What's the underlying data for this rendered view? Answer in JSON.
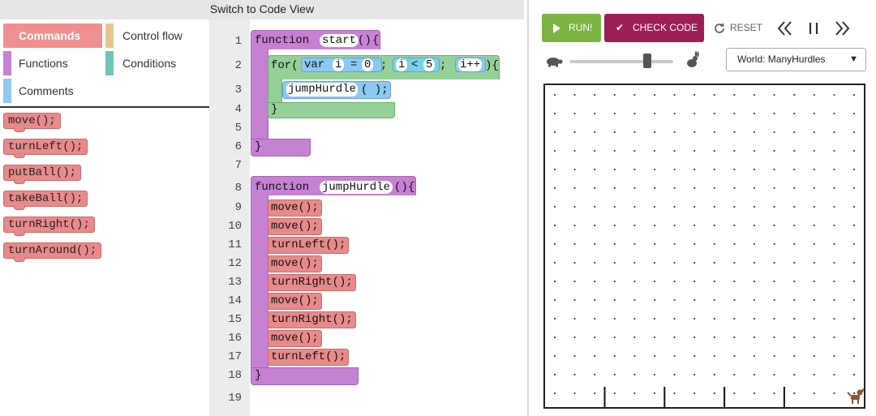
{
  "header": {
    "code_view_label": "Switch to Code View"
  },
  "toolbox": {
    "categories": [
      {
        "label": "Commands",
        "color": "#f08f8f",
        "selected": true
      },
      {
        "label": "Control flow",
        "color": "#e8c58f"
      },
      {
        "label": "Functions",
        "color": "#c681d3"
      },
      {
        "label": "Conditions",
        "color": "#74c3b8"
      },
      {
        "label": "Comments",
        "color": "#8ec8f4"
      }
    ],
    "blocks": [
      "move();",
      "turnLeft();",
      "putBall();",
      "takeBall();",
      "turnRight();",
      "turnAround();"
    ]
  },
  "editor": {
    "line_numbers": [
      "1",
      "2",
      "3",
      "4",
      "5",
      "6",
      "7",
      "8",
      "9",
      "10",
      "11",
      "12",
      "13",
      "14",
      "15",
      "16",
      "17",
      "18",
      "19"
    ],
    "start": {
      "keyword": "function",
      "name": "start",
      "parens": "()",
      "open_brace": "{",
      "close_brace": "}",
      "for_loop": {
        "keyword": "for(",
        "init": "var i = 0",
        "init_var": "var",
        "init_name": "i",
        "init_eq": "=",
        "init_val": "0",
        "sep": ";",
        "cond_var": "i",
        "cond_op": "<",
        "cond_val": "5",
        "incr": "i++",
        "close": "){",
        "end": "}",
        "body_call": "jumpHurdle",
        "body_call_parens": "( );"
      }
    },
    "jump_hurdle": {
      "keyword": "function",
      "name": "jumpHurdle",
      "parens": "()",
      "open_brace": "{",
      "close_brace": "}",
      "body": [
        "move();",
        "move();",
        "turnLeft();",
        "move();",
        "turnRight();",
        "move();",
        "turnRight();",
        "move();",
        "turnLeft();"
      ]
    }
  },
  "runner": {
    "run_label": "RUN!",
    "check_label": "CHECK CODE",
    "reset_label": "RESET",
    "world_select_value": "World: ManyHurdles",
    "speed_level": 0.75,
    "world": {
      "cols": 16,
      "rows": 17,
      "hurdle_after_cols": [
        3,
        6,
        9,
        12
      ]
    }
  },
  "colors": {
    "run": "#7cb342",
    "check": "#9c1f57",
    "command": "#e98a8a",
    "function": "#c681d3",
    "loop": "#94d098",
    "expression": "#8cc8f2"
  }
}
